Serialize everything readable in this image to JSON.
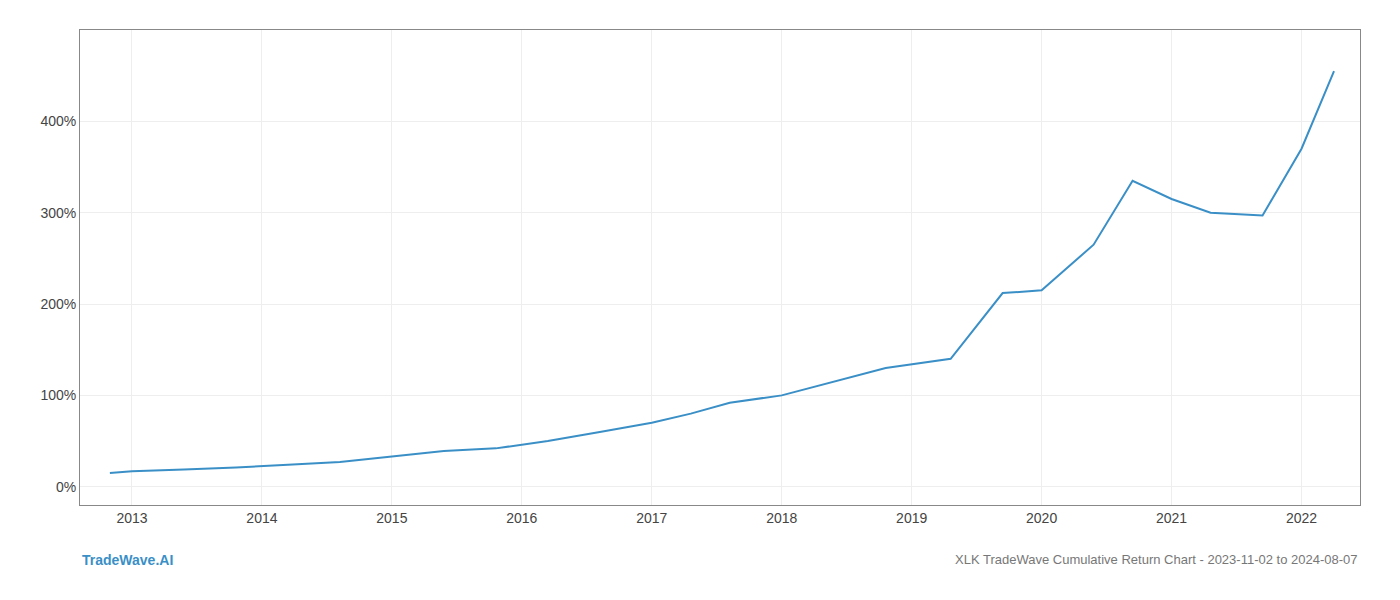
{
  "chart_data": {
    "type": "line",
    "x": [
      2012.83,
      2013.0,
      2013.4,
      2013.8,
      2014.2,
      2014.6,
      2015.0,
      2015.4,
      2015.8,
      2016.2,
      2016.6,
      2017.0,
      2017.3,
      2017.6,
      2018.0,
      2018.4,
      2018.8,
      2019.3,
      2019.7,
      2020.0,
      2020.4,
      2020.7,
      2021.0,
      2021.3,
      2021.7,
      2022.0,
      2022.25
    ],
    "values": [
      15,
      17,
      19,
      21,
      24,
      27,
      33,
      39,
      42,
      50,
      60,
      70,
      80,
      92,
      100,
      115,
      130,
      140,
      212,
      215,
      265,
      335,
      315,
      300,
      297,
      370,
      455
    ],
    "color": "#3a8fc7",
    "xlim": [
      2012.6,
      2022.45
    ],
    "xticks": [
      2013,
      2014,
      2015,
      2016,
      2017,
      2018,
      2019,
      2020,
      2021,
      2022
    ],
    "ylim": [
      -20,
      500
    ],
    "yticks": [
      {
        "value": 0,
        "label": "0%"
      },
      {
        "value": 100,
        "label": "100%"
      },
      {
        "value": 200,
        "label": "200%"
      },
      {
        "value": 300,
        "label": "300%"
      },
      {
        "value": 400,
        "label": "400%"
      }
    ],
    "grid": true,
    "annotations": [
      "TradeWave.AI",
      "XLK TradeWave Cumulative Return Chart - 2023-11-02 to 2024-08-07"
    ]
  }
}
